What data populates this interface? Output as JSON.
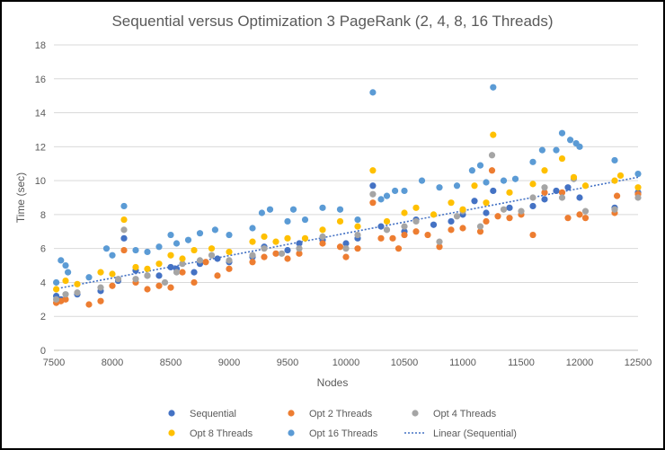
{
  "chart_data": {
    "type": "scatter",
    "title": "Sequential versus Optimization 3 PageRank (2, 4, 8, 16 Threads)",
    "xlabel": "Nodes",
    "ylabel": "Time (sec)",
    "xlim": [
      7500,
      12500
    ],
    "ylim": [
      0,
      18
    ],
    "x_ticks": [
      "7500",
      "8000",
      "8500",
      "9000",
      "9500",
      "10000",
      "10500",
      "11000",
      "11500",
      "12000",
      "12500"
    ],
    "y_ticks": [
      "0",
      "2",
      "4",
      "6",
      "8",
      "10",
      "12",
      "14",
      "16",
      "18"
    ],
    "grid": "horizontal",
    "legend_position": "bottom",
    "series": [
      {
        "name": "Sequential",
        "color": "#4472c4",
        "values": [
          [
            7520,
            3.2
          ],
          [
            7560,
            3.0
          ],
          [
            7700,
            3.3
          ],
          [
            7900,
            3.5
          ],
          [
            8050,
            4.1
          ],
          [
            8100,
            6.6
          ],
          [
            8200,
            4.7
          ],
          [
            8300,
            4.4
          ],
          [
            8400,
            4.4
          ],
          [
            8500,
            4.9
          ],
          [
            8550,
            4.8
          ],
          [
            8700,
            4.6
          ],
          [
            8750,
            5.1
          ],
          [
            8900,
            5.4
          ],
          [
            9000,
            5.2
          ],
          [
            9200,
            5.5
          ],
          [
            9300,
            6.1
          ],
          [
            9500,
            5.9
          ],
          [
            9600,
            6.3
          ],
          [
            9800,
            6.5
          ],
          [
            10000,
            6.3
          ],
          [
            10100,
            6.6
          ],
          [
            10230,
            9.7
          ],
          [
            10300,
            7.3
          ],
          [
            10500,
            7.0
          ],
          [
            10600,
            7.7
          ],
          [
            10750,
            7.4
          ],
          [
            10900,
            7.6
          ],
          [
            11000,
            8.0
          ],
          [
            11100,
            8.8
          ],
          [
            11200,
            8.1
          ],
          [
            11260,
            9.4
          ],
          [
            11400,
            8.4
          ],
          [
            11600,
            8.5
          ],
          [
            11700,
            8.9
          ],
          [
            11800,
            9.4
          ],
          [
            11900,
            9.6
          ],
          [
            12000,
            9.0
          ],
          [
            12300,
            8.4
          ],
          [
            12500,
            9.3
          ]
        ]
      },
      {
        "name": "Opt 2 Threads",
        "color": "#ed7d31",
        "values": [
          [
            7520,
            2.8
          ],
          [
            7560,
            2.9
          ],
          [
            7600,
            3.0
          ],
          [
            7800,
            2.7
          ],
          [
            7900,
            2.9
          ],
          [
            8000,
            3.8
          ],
          [
            8100,
            5.9
          ],
          [
            8200,
            4.0
          ],
          [
            8300,
            3.6
          ],
          [
            8400,
            3.8
          ],
          [
            8500,
            3.7
          ],
          [
            8600,
            4.6
          ],
          [
            8700,
            4.0
          ],
          [
            8800,
            5.2
          ],
          [
            8900,
            4.4
          ],
          [
            9000,
            4.8
          ],
          [
            9200,
            5.2
          ],
          [
            9300,
            5.5
          ],
          [
            9400,
            5.7
          ],
          [
            9500,
            5.4
          ],
          [
            9600,
            5.7
          ],
          [
            9800,
            6.3
          ],
          [
            9950,
            6.1
          ],
          [
            10000,
            5.5
          ],
          [
            10100,
            6.0
          ],
          [
            10230,
            8.7
          ],
          [
            10300,
            6.6
          ],
          [
            10400,
            6.6
          ],
          [
            10450,
            6.0
          ],
          [
            10500,
            6.8
          ],
          [
            10600,
            7.0
          ],
          [
            10700,
            6.8
          ],
          [
            10800,
            6.1
          ],
          [
            10900,
            7.1
          ],
          [
            11000,
            7.2
          ],
          [
            11150,
            7.0
          ],
          [
            11200,
            7.6
          ],
          [
            11250,
            10.6
          ],
          [
            11300,
            7.9
          ],
          [
            11400,
            7.8
          ],
          [
            11500,
            8.0
          ],
          [
            11600,
            6.8
          ],
          [
            11700,
            9.3
          ],
          [
            11850,
            9.3
          ],
          [
            11900,
            7.8
          ],
          [
            12000,
            8.0
          ],
          [
            12050,
            7.8
          ],
          [
            12300,
            8.1
          ],
          [
            12320,
            9.1
          ],
          [
            12500,
            9.2
          ]
        ]
      },
      {
        "name": "Opt 4 Threads",
        "color": "#a5a5a5",
        "values": [
          [
            7520,
            3.0
          ],
          [
            7600,
            3.3
          ],
          [
            7700,
            3.4
          ],
          [
            7900,
            3.7
          ],
          [
            8050,
            4.2
          ],
          [
            8100,
            7.1
          ],
          [
            8200,
            4.2
          ],
          [
            8300,
            4.4
          ],
          [
            8450,
            4.0
          ],
          [
            8550,
            4.6
          ],
          [
            8600,
            5.1
          ],
          [
            8750,
            5.3
          ],
          [
            8850,
            5.6
          ],
          [
            9000,
            5.3
          ],
          [
            9200,
            5.6
          ],
          [
            9300,
            6.0
          ],
          [
            9450,
            5.7
          ],
          [
            9600,
            6.0
          ],
          [
            9800,
            6.7
          ],
          [
            10000,
            6.0
          ],
          [
            10100,
            6.8
          ],
          [
            10230,
            9.2
          ],
          [
            10350,
            7.1
          ],
          [
            10500,
            7.3
          ],
          [
            10600,
            7.6
          ],
          [
            10800,
            6.4
          ],
          [
            10950,
            7.9
          ],
          [
            11000,
            8.2
          ],
          [
            11150,
            7.3
          ],
          [
            11250,
            11.5
          ],
          [
            11350,
            8.3
          ],
          [
            11500,
            8.2
          ],
          [
            11600,
            9.0
          ],
          [
            11700,
            9.6
          ],
          [
            11850,
            9.0
          ],
          [
            11950,
            10.1
          ],
          [
            12050,
            8.2
          ],
          [
            12300,
            8.3
          ],
          [
            12500,
            9.0
          ]
        ]
      },
      {
        "name": "Opt 8 Threads",
        "color": "#ffc000",
        "values": [
          [
            7520,
            3.6
          ],
          [
            7600,
            4.1
          ],
          [
            7700,
            3.9
          ],
          [
            7900,
            4.6
          ],
          [
            8000,
            4.5
          ],
          [
            8100,
            7.7
          ],
          [
            8200,
            4.9
          ],
          [
            8300,
            4.8
          ],
          [
            8400,
            5.1
          ],
          [
            8500,
            5.6
          ],
          [
            8600,
            5.4
          ],
          [
            8700,
            5.9
          ],
          [
            8850,
            6.0
          ],
          [
            9000,
            5.8
          ],
          [
            9200,
            6.4
          ],
          [
            9300,
            6.7
          ],
          [
            9400,
            6.4
          ],
          [
            9500,
            6.6
          ],
          [
            9650,
            6.6
          ],
          [
            9800,
            7.1
          ],
          [
            9950,
            7.6
          ],
          [
            10100,
            7.3
          ],
          [
            10230,
            10.6
          ],
          [
            10350,
            7.6
          ],
          [
            10500,
            8.1
          ],
          [
            10600,
            8.4
          ],
          [
            10750,
            8.0
          ],
          [
            10900,
            8.7
          ],
          [
            11000,
            8.3
          ],
          [
            11100,
            9.7
          ],
          [
            11200,
            8.7
          ],
          [
            11260,
            12.7
          ],
          [
            11400,
            9.3
          ],
          [
            11600,
            9.8
          ],
          [
            11700,
            10.6
          ],
          [
            11850,
            11.3
          ],
          [
            11950,
            10.2
          ],
          [
            12050,
            9.7
          ],
          [
            12300,
            10.0
          ],
          [
            12350,
            10.3
          ],
          [
            12500,
            9.6
          ]
        ]
      },
      {
        "name": "Opt 16 Threads",
        "color": "#5b9bd5",
        "values": [
          [
            7520,
            4.0
          ],
          [
            7560,
            5.3
          ],
          [
            7600,
            5.0
          ],
          [
            7620,
            4.6
          ],
          [
            7800,
            4.3
          ],
          [
            7950,
            6.0
          ],
          [
            8000,
            5.6
          ],
          [
            8100,
            8.5
          ],
          [
            8200,
            5.9
          ],
          [
            8300,
            5.8
          ],
          [
            8400,
            6.1
          ],
          [
            8500,
            6.8
          ],
          [
            8550,
            6.3
          ],
          [
            8650,
            6.5
          ],
          [
            8750,
            6.9
          ],
          [
            8880,
            7.1
          ],
          [
            9000,
            6.8
          ],
          [
            9200,
            7.2
          ],
          [
            9280,
            8.1
          ],
          [
            9350,
            8.3
          ],
          [
            9500,
            7.6
          ],
          [
            9550,
            8.3
          ],
          [
            9650,
            7.7
          ],
          [
            9800,
            8.4
          ],
          [
            9950,
            8.3
          ],
          [
            10100,
            7.7
          ],
          [
            10230,
            15.2
          ],
          [
            10300,
            8.9
          ],
          [
            10350,
            9.1
          ],
          [
            10420,
            9.4
          ],
          [
            10500,
            9.4
          ],
          [
            10650,
            10.0
          ],
          [
            10800,
            9.6
          ],
          [
            10950,
            9.7
          ],
          [
            11080,
            10.6
          ],
          [
            11150,
            10.9
          ],
          [
            11200,
            9.9
          ],
          [
            11260,
            15.5
          ],
          [
            11350,
            10.0
          ],
          [
            11450,
            10.1
          ],
          [
            11600,
            11.1
          ],
          [
            11680,
            11.8
          ],
          [
            11800,
            11.8
          ],
          [
            11850,
            12.8
          ],
          [
            11920,
            12.4
          ],
          [
            11970,
            12.2
          ],
          [
            12000,
            12.0
          ],
          [
            12300,
            11.2
          ],
          [
            12500,
            10.4
          ]
        ]
      }
    ],
    "trendline": {
      "name": "Linear (Sequential)",
      "color": "#4472c4",
      "x": [
        7500,
        12500
      ],
      "y": [
        3.6,
        10.2
      ]
    }
  }
}
